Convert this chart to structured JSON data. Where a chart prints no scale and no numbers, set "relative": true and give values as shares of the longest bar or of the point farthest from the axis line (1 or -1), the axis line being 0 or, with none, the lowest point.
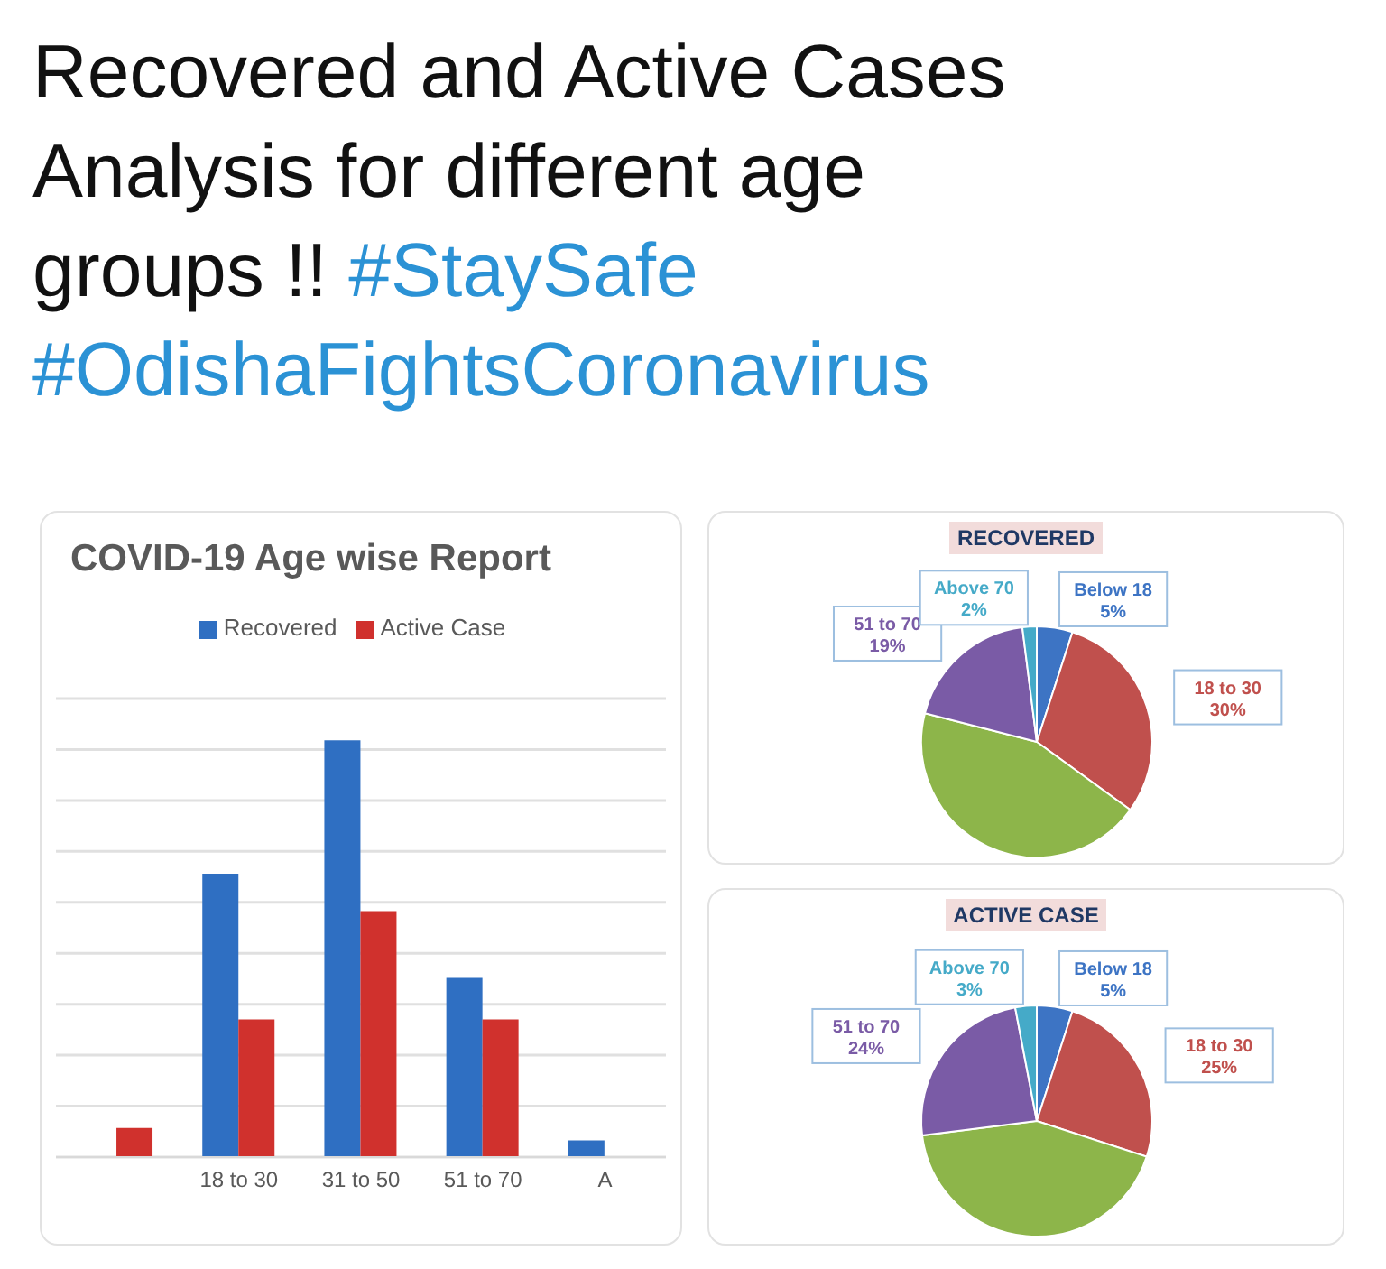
{
  "chart_data": [
    {
      "type": "other",
      "title": "Recovered and Active Cases Analysis for different age groups !!",
      "annotations": [
        "#StaySafe",
        "#OdishaFightsCoronavirus"
      ]
    },
    {
      "type": "bar",
      "title": "COVID-19 Age wise Report",
      "categories": [
        null,
        "18 to 30",
        "31 to 50",
        "51 to 70",
        "A"
      ],
      "relative": true,
      "series": [
        {
          "name": "Recovered",
          "color": "#2f6fc2",
          "values": [
            null,
            0.68,
            1,
            0.43,
            0.04
          ]
        },
        {
          "name": "Active Case",
          "color": "#d0312d",
          "values": [
            0.07,
            0.33,
            0.59,
            0.33,
            null
          ]
        }
      ],
      "legend": "top",
      "grid": "y"
    },
    {
      "type": "pie",
      "title": "RECOVERED",
      "categories": [
        "Below 18",
        "18 to 30",
        null,
        "51 to 70",
        "Above 70"
      ],
      "values": [
        5,
        30,
        44,
        19,
        2
      ],
      "colors": [
        "#3d74c4",
        "#c0504d",
        "#8db54a",
        "#7a5ba6",
        "#45aac8"
      ],
      "value_labels": [
        "5%",
        "30%",
        null,
        "19%",
        "2%"
      ]
    },
    {
      "type": "pie",
      "title": "ACTIVE CASE",
      "categories": [
        "Below 18",
        "18 to 30",
        null,
        "51 to 70",
        "Above 70"
      ],
      "values": [
        5,
        25,
        43,
        24,
        3
      ],
      "colors": [
        "#3d74c4",
        "#c0504d",
        "#8db54a",
        "#7a5ba6",
        "#45aac8"
      ],
      "value_labels": [
        "5%",
        "25%",
        null,
        "24%",
        "3%"
      ]
    }
  ]
}
